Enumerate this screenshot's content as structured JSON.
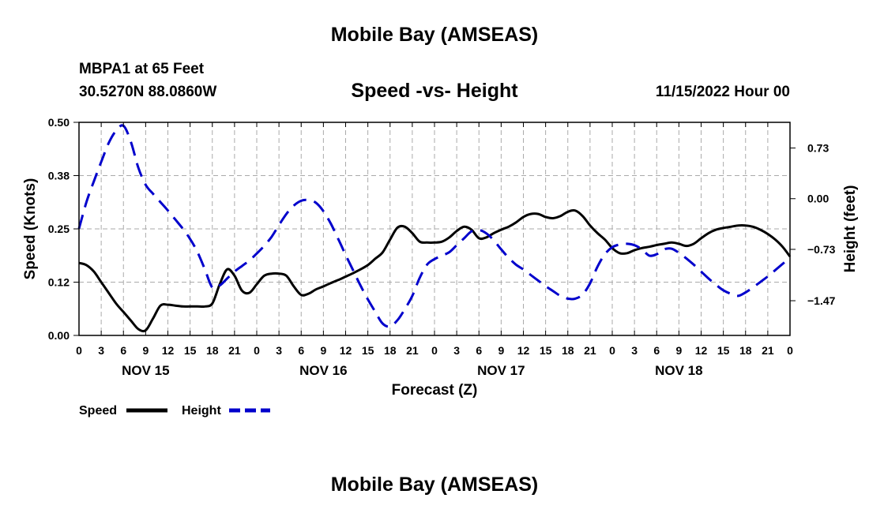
{
  "header": {
    "main_title": "Mobile Bay (AMSEAS)",
    "station": "MBPA1 at 65 Feet",
    "coords": "30.5270N  88.0860W",
    "chart_title": "Speed -vs- Height",
    "datetime": "11/15/2022 Hour 00",
    "bottom_title": "Mobile Bay (AMSEAS)"
  },
  "colors": {
    "speed": "#000000",
    "height": "#0000cc",
    "grid": "#aaaaaa"
  },
  "chart_data": {
    "type": "line",
    "title": "Speed -vs- Height",
    "xlabel": "Forecast (Z)",
    "ylabel": "Speed (Knots)",
    "y2label": "Height (feet)",
    "xlim": [
      0,
      96
    ],
    "ylim": [
      0,
      0.5
    ],
    "y2lim": [
      -1.97,
      1.1
    ],
    "grid": true,
    "x_ticks": [
      0,
      3,
      6,
      9,
      12,
      15,
      18,
      21,
      24,
      27,
      30,
      33,
      36,
      39,
      42,
      45,
      48,
      51,
      54,
      57,
      60,
      63,
      66,
      69,
      72,
      75,
      78,
      81,
      84,
      87,
      90,
      93,
      96
    ],
    "x_tick_labels": [
      "0",
      "3",
      "6",
      "9",
      "12",
      "15",
      "18",
      "21",
      "0",
      "3",
      "6",
      "9",
      "12",
      "15",
      "18",
      "21",
      "0",
      "3",
      "6",
      "9",
      "12",
      "15",
      "18",
      "21",
      "0",
      "3",
      "6",
      "9",
      "12",
      "15",
      "18",
      "21",
      "0"
    ],
    "y_ticks": [
      0,
      0.125,
      0.25,
      0.375,
      0.5
    ],
    "y_tick_labels": [
      "0.00",
      "0.12",
      "0.25",
      "0.38",
      "0.50"
    ],
    "y2_ticks": [
      0.73,
      0,
      -0.73,
      -1.47
    ],
    "y2_tick_labels": [
      "0.73",
      "0.00",
      "−0.73",
      "−1.47"
    ],
    "day_labels": [
      {
        "x": 9,
        "label": "NOV 15"
      },
      {
        "x": 33,
        "label": "NOV 16"
      },
      {
        "x": 57,
        "label": "NOV 17"
      },
      {
        "x": 81,
        "label": "NOV 18"
      }
    ],
    "legend": {
      "placement": "bottom-left",
      "entries": [
        "Speed",
        "Height"
      ]
    },
    "series": [
      {
        "name": "Speed",
        "axis": "left",
        "style": "solid",
        "x": [
          0,
          1,
          2,
          3,
          4,
          5,
          6,
          7,
          8,
          9,
          10,
          11,
          12,
          13,
          14,
          15,
          16,
          17,
          18,
          19,
          20,
          21,
          22,
          23,
          24,
          25,
          26,
          27,
          28,
          29,
          30,
          31,
          32,
          33,
          34,
          35,
          36,
          37,
          38,
          39,
          40,
          41,
          42,
          43,
          44,
          45,
          46,
          47,
          48,
          49,
          50,
          51,
          52,
          53,
          54,
          55,
          56,
          57,
          58,
          59,
          60,
          61,
          62,
          63,
          64,
          65,
          66,
          67,
          68,
          69,
          70,
          71,
          72,
          73,
          74,
          75,
          76,
          77,
          78,
          79,
          80,
          81,
          82,
          83,
          84,
          85,
          86,
          87,
          88,
          89,
          90,
          91,
          92,
          93,
          94,
          95,
          96
        ],
        "values": [
          0.17,
          0.165,
          0.15,
          0.125,
          0.1,
          0.075,
          0.055,
          0.035,
          0.015,
          0.012,
          0.04,
          0.07,
          0.072,
          0.07,
          0.068,
          0.068,
          0.068,
          0.068,
          0.075,
          0.12,
          0.155,
          0.14,
          0.105,
          0.1,
          0.12,
          0.14,
          0.145,
          0.145,
          0.14,
          0.115,
          0.095,
          0.098,
          0.108,
          0.115,
          0.123,
          0.13,
          0.138,
          0.146,
          0.155,
          0.165,
          0.18,
          0.195,
          0.225,
          0.253,
          0.255,
          0.24,
          0.22,
          0.218,
          0.218,
          0.22,
          0.23,
          0.245,
          0.255,
          0.248,
          0.228,
          0.23,
          0.24,
          0.248,
          0.255,
          0.265,
          0.278,
          0.285,
          0.285,
          0.278,
          0.275,
          0.28,
          0.29,
          0.293,
          0.28,
          0.258,
          0.24,
          0.225,
          0.205,
          0.193,
          0.193,
          0.2,
          0.205,
          0.208,
          0.212,
          0.215,
          0.218,
          0.215,
          0.21,
          0.215,
          0.228,
          0.24,
          0.248,
          0.252,
          0.255,
          0.258,
          0.258,
          0.255,
          0.248,
          0.238,
          0.225,
          0.208,
          0.185
        ]
      },
      {
        "name": "Height",
        "axis": "right",
        "style": "dashed",
        "x": [
          0,
          1,
          2,
          3,
          4,
          5,
          6,
          7,
          8,
          9,
          10,
          11,
          12,
          13,
          14,
          15,
          16,
          17,
          18,
          19,
          20,
          21,
          22,
          23,
          24,
          25,
          26,
          27,
          28,
          29,
          30,
          31,
          32,
          33,
          34,
          35,
          36,
          37,
          38,
          39,
          40,
          41,
          42,
          43,
          44,
          45,
          46,
          47,
          48,
          49,
          50,
          51,
          52,
          53,
          54,
          55,
          56,
          57,
          58,
          59,
          60,
          61,
          62,
          63,
          64,
          65,
          66,
          67,
          68,
          69,
          70,
          71,
          72,
          73,
          74,
          75,
          76,
          77,
          78,
          79,
          80,
          81,
          82,
          83,
          84,
          85,
          86,
          87,
          88,
          89,
          90,
          91,
          92,
          93,
          94,
          95,
          96
        ],
        "values": [
          -0.43,
          -0.05,
          0.25,
          0.53,
          0.8,
          0.98,
          1.05,
          0.82,
          0.45,
          0.2,
          0.07,
          -0.05,
          -0.17,
          -0.3,
          -0.43,
          -0.58,
          -0.77,
          -1.02,
          -1.28,
          -1.25,
          -1.15,
          -1.05,
          -0.97,
          -0.89,
          -0.79,
          -0.68,
          -0.55,
          -0.38,
          -0.22,
          -0.1,
          -0.03,
          -0.02,
          -0.06,
          -0.18,
          -0.36,
          -0.58,
          -0.81,
          -1.03,
          -1.25,
          -1.45,
          -1.63,
          -1.8,
          -1.84,
          -1.75,
          -1.59,
          -1.4,
          -1.14,
          -0.95,
          -0.87,
          -0.82,
          -0.77,
          -0.67,
          -0.57,
          -0.47,
          -0.45,
          -0.5,
          -0.6,
          -0.73,
          -0.85,
          -0.95,
          -1.02,
          -1.1,
          -1.18,
          -1.26,
          -1.33,
          -1.4,
          -1.44,
          -1.44,
          -1.38,
          -1.22,
          -0.98,
          -0.8,
          -0.7,
          -0.66,
          -0.65,
          -0.67,
          -0.73,
          -0.82,
          -0.8,
          -0.73,
          -0.72,
          -0.78,
          -0.86,
          -0.95,
          -1.05,
          -1.15,
          -1.24,
          -1.32,
          -1.37,
          -1.4,
          -1.35,
          -1.28,
          -1.2,
          -1.12,
          -1.03,
          -0.94,
          -0.85
        ]
      }
    ]
  }
}
